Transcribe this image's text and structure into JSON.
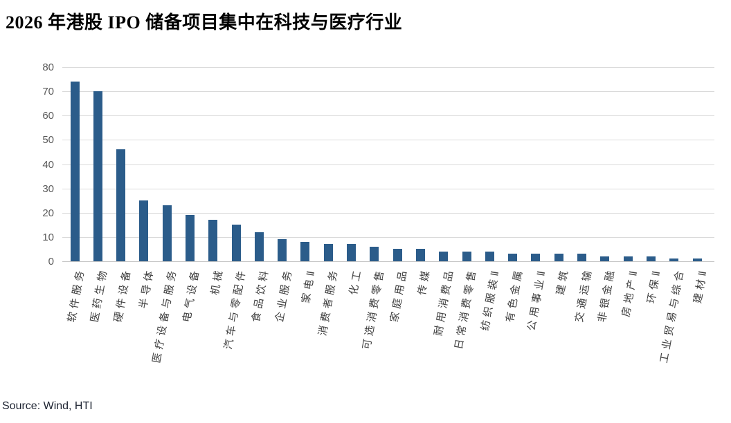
{
  "title": "2026 年港股 IPO 储备项目集中在科技与医疗行业",
  "source": "Source: Wind, HTI",
  "chart_data": {
    "type": "bar",
    "title": "2026 年港股 IPO 储备项目集中在科技与医疗行业",
    "categories": [
      "软件服务",
      "医药生物",
      "硬件设备",
      "半导体",
      "医疗设备与服务",
      "电气设备",
      "机械",
      "汽车与零配件",
      "食品饮料",
      "企业服务",
      "家电Ⅱ",
      "消费者服务",
      "化工",
      "可选消费零售",
      "家庭用品",
      "传媒",
      "耐用消费品",
      "日常消费零售",
      "纺织服装Ⅱ",
      "有色金属",
      "公用事业Ⅱ",
      "建筑",
      "交通运输",
      "非银金融",
      "房地产Ⅱ",
      "环保Ⅱ",
      "工业贸易与综合",
      "建材Ⅱ"
    ],
    "values": [
      74,
      70,
      46,
      25,
      23,
      19,
      17,
      15,
      12,
      9,
      8,
      7,
      7,
      6,
      5,
      5,
      4,
      4,
      4,
      3,
      3,
      3,
      3,
      2,
      2,
      2,
      1,
      1
    ],
    "xlabel": "",
    "ylabel": "",
    "ylim": [
      0,
      80
    ],
    "y_ticks": [
      0,
      10,
      20,
      30,
      40,
      50,
      60,
      70,
      80
    ],
    "grid": true,
    "legend": "none",
    "colors": {
      "bar": "#2B5C8A",
      "gridline": "#D9D9D9",
      "axis_line": "#C6C6C6",
      "tick_label": "#595959",
      "category_label": "#404040"
    }
  }
}
